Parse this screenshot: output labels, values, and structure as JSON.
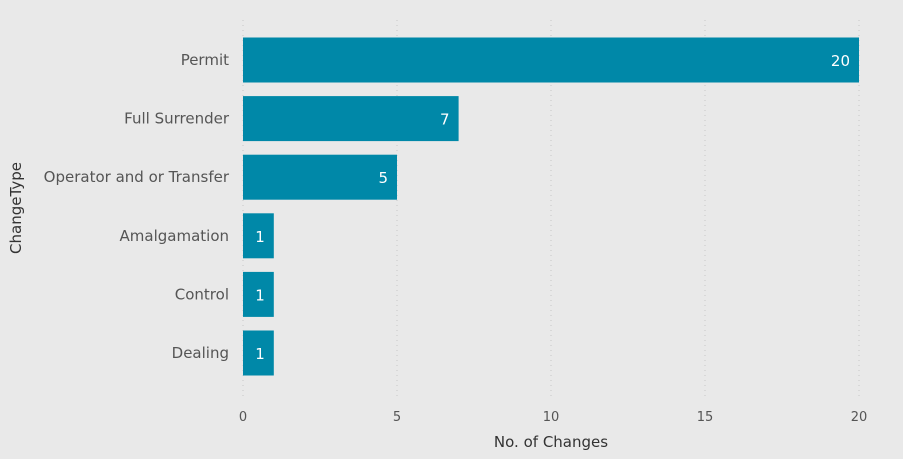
{
  "chart_data": {
    "type": "bar",
    "orientation": "horizontal",
    "categories": [
      "Permit",
      "Full Surrender",
      "Operator and or Transfer",
      "Amalgamation",
      "Control",
      "Dealing"
    ],
    "values": [
      20,
      7,
      5,
      1,
      1,
      1
    ],
    "xlabel": "No. of Changes",
    "ylabel": "ChangeType",
    "xlim": [
      0,
      20
    ],
    "xticks": [
      0,
      5,
      10,
      15,
      20
    ],
    "grid": true,
    "legend": "none",
    "bar_color": "#0088a8",
    "background_color": "#e9e9e9"
  }
}
